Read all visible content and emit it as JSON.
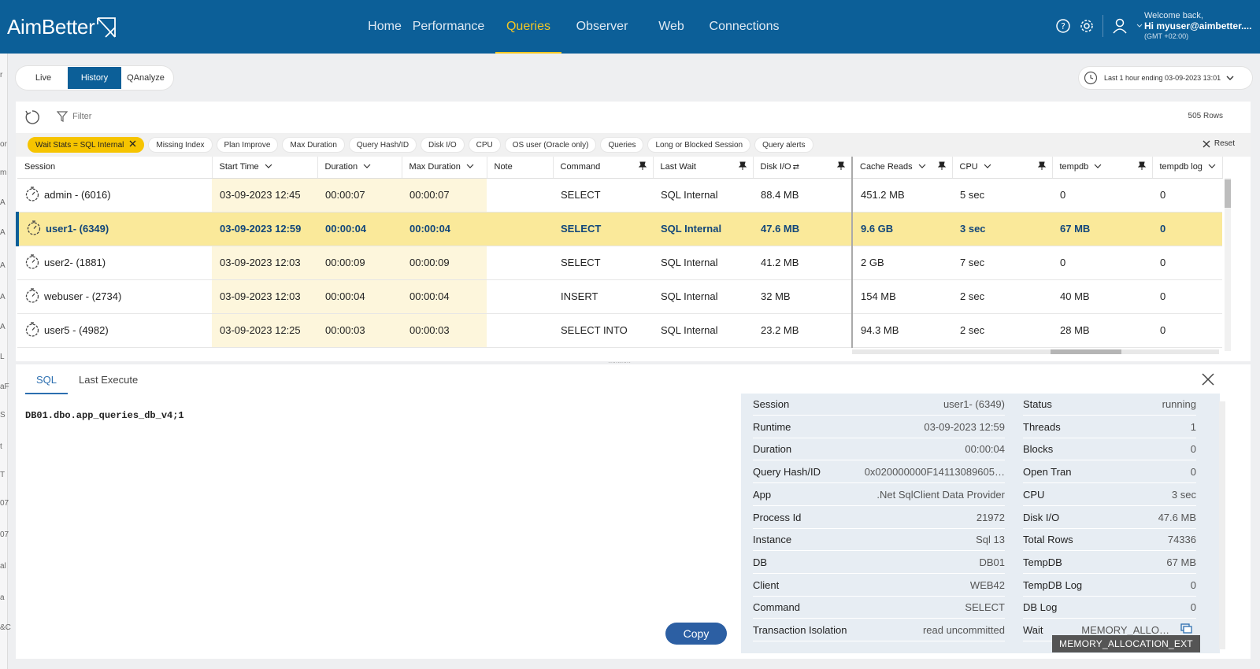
{
  "app": {
    "logo_text": "AimBetter"
  },
  "nav": [
    "Home",
    "Performance",
    "Queries",
    "Observer",
    "Web",
    "Connections"
  ],
  "nav_active": "Queries",
  "user": {
    "welcome": "Welcome back,",
    "name": "Hi myuser@aimbetter....",
    "tz": "(GMT +02:00)"
  },
  "left_strip": [
    "r",
    "or",
    "m",
    "A",
    "A",
    "A",
    "A",
    "A",
    "L",
    "aF",
    "S",
    "t",
    "T",
    "07",
    "07",
    "al",
    "a",
    "&C"
  ],
  "modes": [
    "Live",
    "History",
    "QAnalyze"
  ],
  "mode_active": "History",
  "time_range": "Last 1 hour ending  03-09-2023 13:01",
  "toolbar": {
    "filter_label": "Filter",
    "row_count": "505 Rows"
  },
  "filter_chips": [
    "Wait Stats = SQL Internal",
    "Missing Index",
    "Plan Improve",
    "Max Duration",
    "Query Hash/ID",
    "Disk I/O",
    "CPU",
    "OS user (Oracle only)",
    "Queries",
    "Long or Blocked Session",
    "Query alerts"
  ],
  "reset_label": "Reset",
  "table": {
    "columns": [
      "Session",
      "Start Time",
      "Duration",
      "Max Duration",
      "Note",
      "Command",
      "Last Wait",
      "Disk I/O",
      "Cache Reads",
      "CPU",
      "tempdb",
      "tempdb log"
    ],
    "rows": [
      [
        "admin - (6016)",
        "03-09-2023 12:45",
        "00:00:07",
        "00:00:07",
        "",
        "SELECT",
        "SQL Internal",
        "88.4 MB",
        "451.2 MB",
        "5 sec",
        "0",
        "0"
      ],
      [
        "user1- (6349)",
        "03-09-2023 12:59",
        "00:00:04",
        "00:00:04",
        "",
        "SELECT",
        "SQL Internal",
        "47.6 MB",
        "9.6 GB",
        "3 sec",
        "67 MB",
        "0"
      ],
      [
        "user2- (1881)",
        "03-09-2023 12:03",
        "00:00:09",
        "00:00:09",
        "",
        "SELECT",
        "SQL Internal",
        "41.2 MB",
        "2 GB",
        "7 sec",
        "0",
        "0"
      ],
      [
        "webuser - (2734)",
        "03-09-2023 12:03",
        "00:00:04",
        "00:00:04",
        "",
        "INSERT",
        "SQL Internal",
        "32 MB",
        "154 MB",
        "2 sec",
        "40 MB",
        "0"
      ],
      [
        "user5 - (4982)",
        "03-09-2023 12:25",
        "00:00:03",
        "00:00:03",
        "",
        "SELECT INTO",
        "SQL Internal",
        "23.2 MB",
        "94.3 MB",
        "2 sec",
        "28 MB",
        "0"
      ]
    ],
    "selected_row": 1
  },
  "bottom": {
    "tabs": [
      "SQL",
      "Last Execute"
    ],
    "sql_text": "DB01.dbo.app_queries_db_v4;1",
    "copy_label": "Copy",
    "details_left": [
      {
        "k": "Session",
        "v": "user1- (6349)"
      },
      {
        "k": "Runtime",
        "v": "03-09-2023 12:59"
      },
      {
        "k": "Duration",
        "v": "00:00:04"
      },
      {
        "k": "Query Hash/ID",
        "v": "0x020000000F14113089605…"
      },
      {
        "k": "App",
        "v": ".Net SqlClient Data Provider"
      },
      {
        "k": "Process Id",
        "v": "21972"
      },
      {
        "k": "Instance",
        "v": "Sql 13"
      },
      {
        "k": "DB",
        "v": "DB01"
      },
      {
        "k": "Client",
        "v": "WEB42"
      },
      {
        "k": "Command",
        "v": "SELECT"
      },
      {
        "k": "Transaction Isolation",
        "v": "read uncommitted"
      }
    ],
    "details_right": [
      {
        "k": "Status",
        "v": "running"
      },
      {
        "k": "Threads",
        "v": "1"
      },
      {
        "k": "Blocks",
        "v": "0"
      },
      {
        "k": "Open Tran",
        "v": "0"
      },
      {
        "k": "CPU",
        "v": "3 sec"
      },
      {
        "k": "Disk I/O",
        "v": "47.6 MB"
      },
      {
        "k": "Total Rows",
        "v": "74336"
      },
      {
        "k": "TempDB",
        "v": "67 MB"
      },
      {
        "k": "TempDB Log",
        "v": "0"
      },
      {
        "k": "DB Log",
        "v": "0"
      },
      {
        "k": "Wait",
        "v": "MEMORY_ALLO…"
      }
    ],
    "tooltip": "MEMORY_ALLOCATION_EXT"
  },
  "colors": {
    "brand": "#0c5f98",
    "accent": "#f3c623",
    "selected_row": "#fae99a"
  }
}
